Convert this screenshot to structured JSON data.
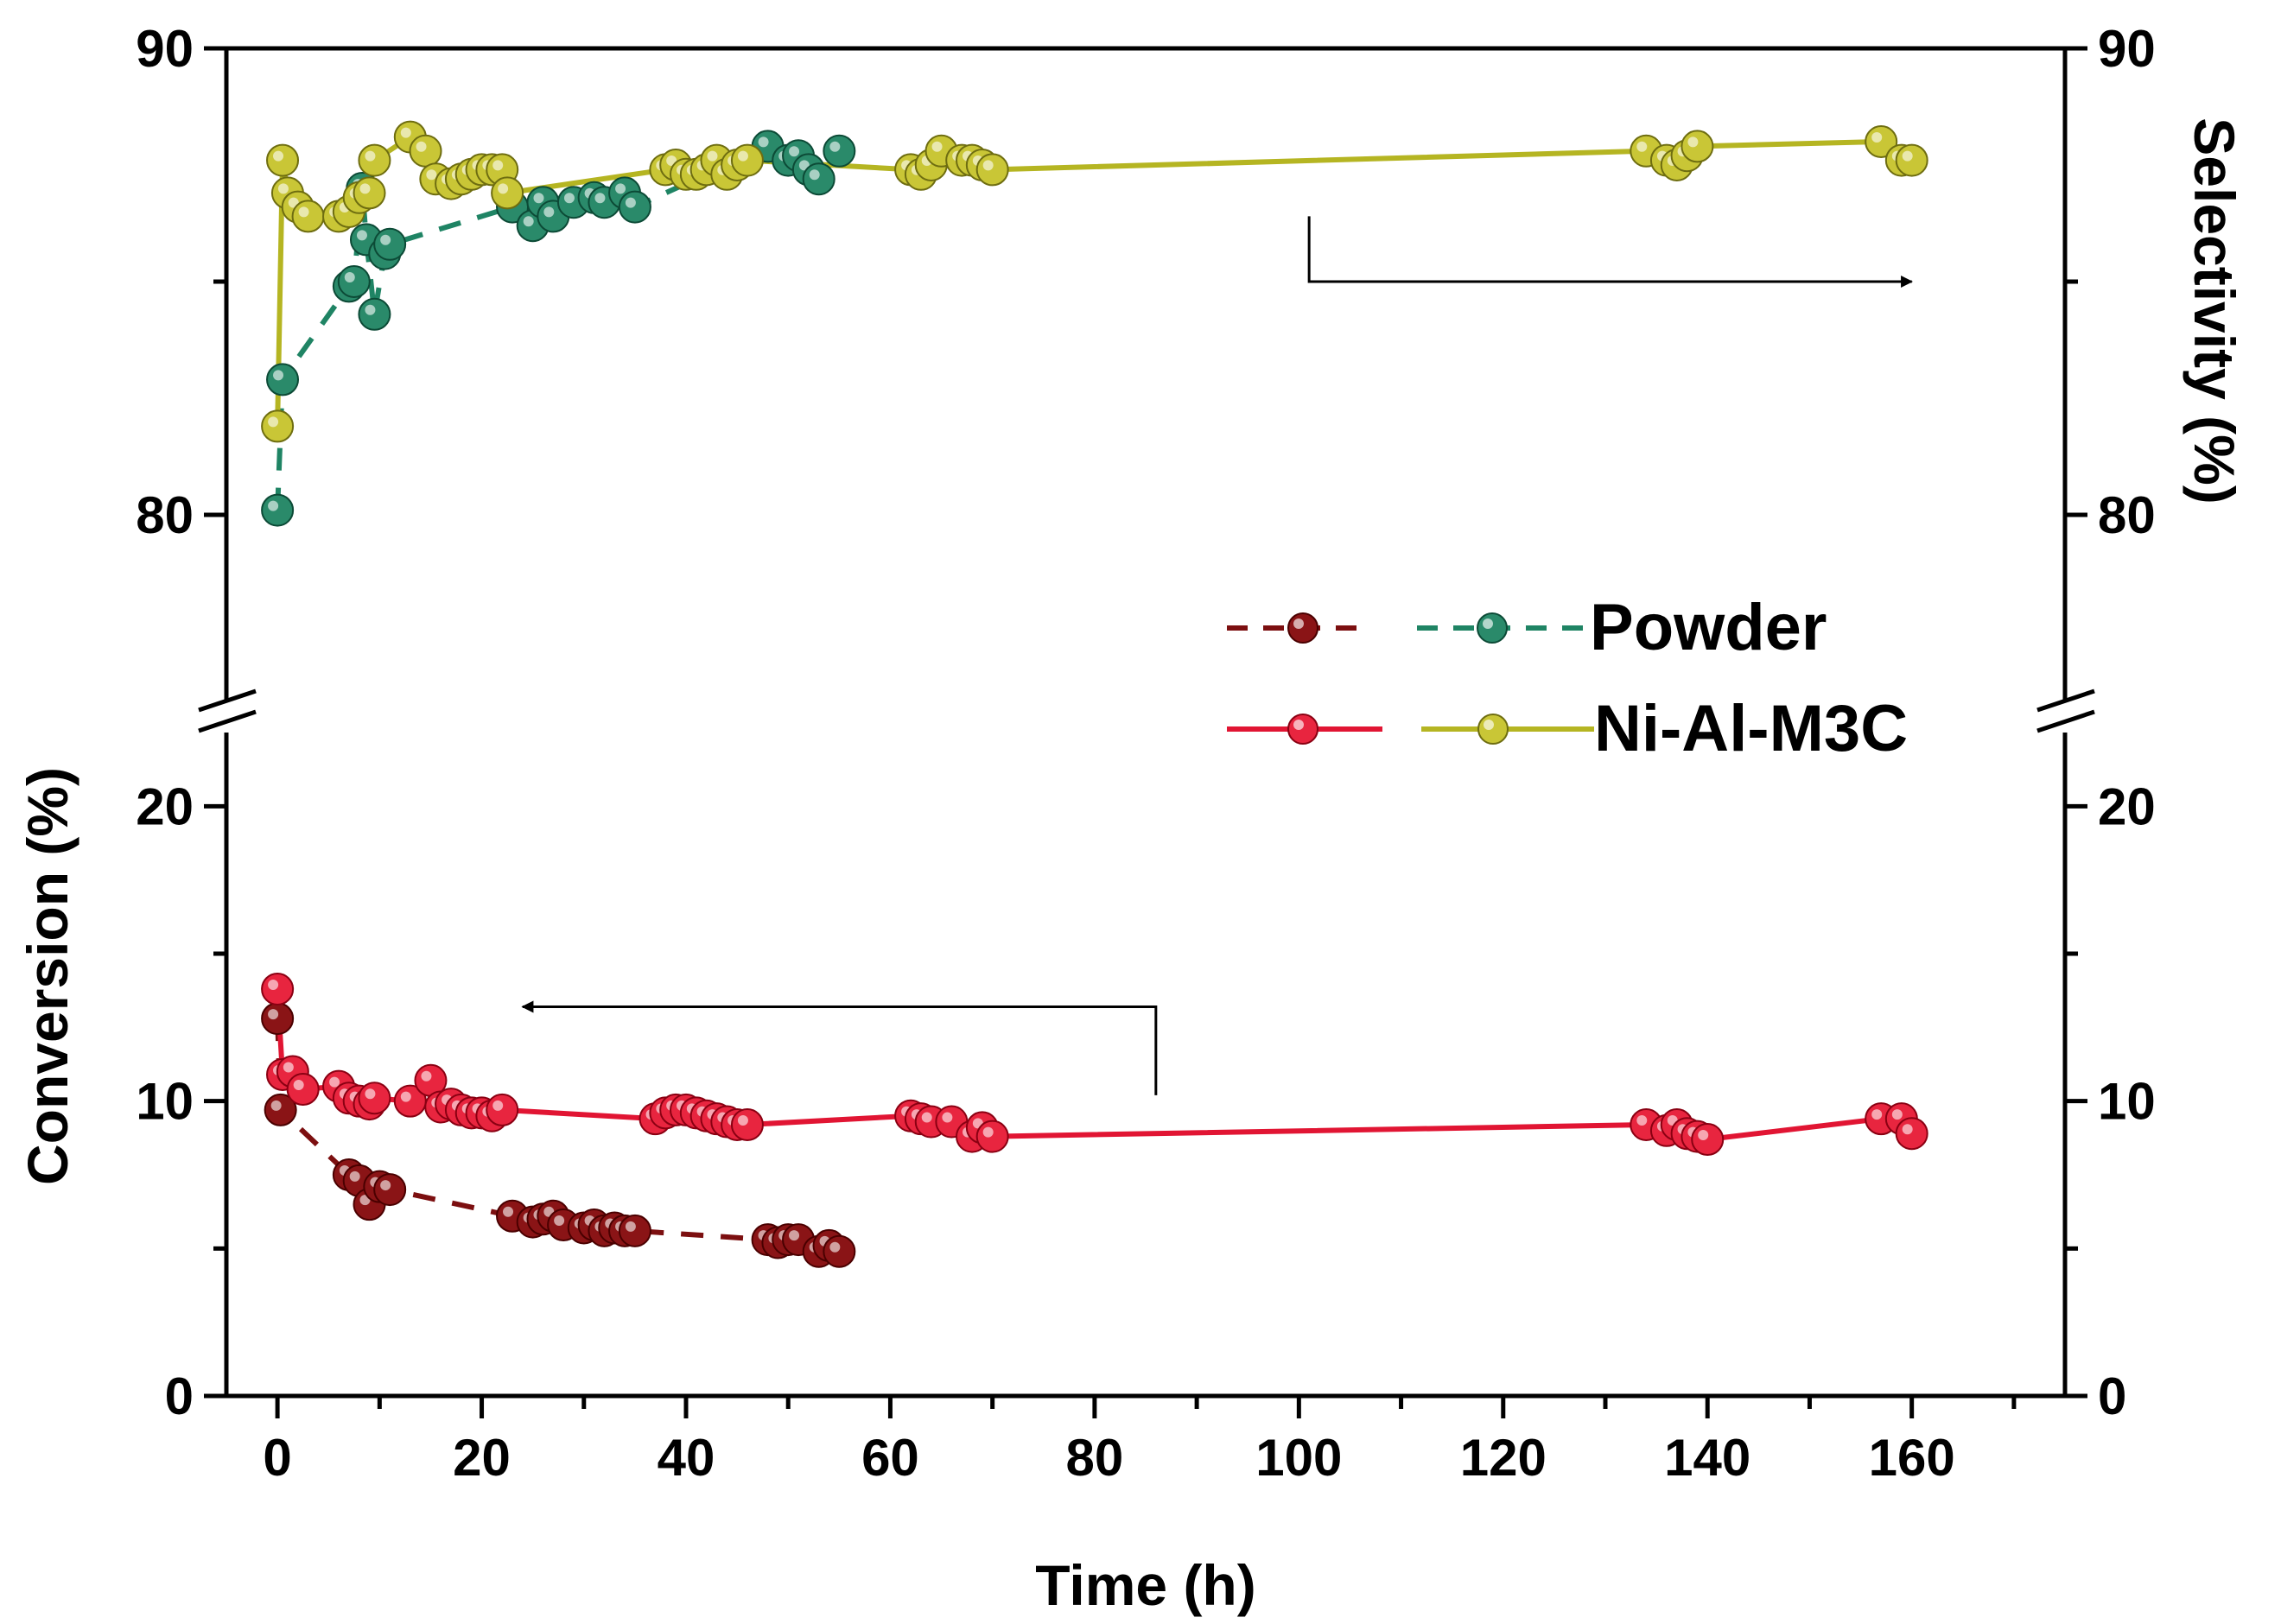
{
  "chart_data": {
    "type": "line",
    "xlabel": "Time (h)",
    "ylabel_left": "Conversion (%)",
    "ylabel_right": "Selectivity (%)",
    "xlim": [
      -5,
      175
    ],
    "x_ticks": [
      "0",
      "20",
      "40",
      "60",
      "80",
      "100",
      "120",
      "140",
      "160"
    ],
    "y_lower_range": [
      0,
      22.5
    ],
    "y_upper_range": [
      76,
      90
    ],
    "y_lower_ticks": [
      "0",
      "10",
      "20"
    ],
    "y_upper_ticks": [
      "80",
      "90"
    ],
    "legend": {
      "placement": "middle-right",
      "entries": [
        {
          "label": "Powder",
          "series": [
            "Powder conversion",
            "Powder selectivity"
          ],
          "style": "dashed"
        },
        {
          "label": "Ni-Al-M3C",
          "series": [
            "Ni-Al-M3C conversion",
            "Ni-Al-M3C selectivity"
          ],
          "style": "solid"
        }
      ]
    },
    "annotations": [
      {
        "type": "arrow",
        "meaning": "conversion series refer to left axis",
        "direction": "left",
        "from": {
          "x": 86,
          "y": 10.2
        },
        "corner": {
          "x": 86,
          "y": 13.2
        },
        "to": {
          "x": 24,
          "y": 13.2
        }
      },
      {
        "type": "arrow",
        "meaning": "selectivity series refer to right axis",
        "direction": "right",
        "from": {
          "x": 101,
          "y": 86.4
        },
        "corner": {
          "x": 101,
          "y": 85
        },
        "to": {
          "x": 160,
          "y": 85
        }
      }
    ],
    "series": [
      {
        "name": "Powder conversion",
        "axis": "left",
        "panel": "lower",
        "line_style": "dashed",
        "color": "#7c0f10",
        "marker_color": "#8a1416",
        "x": [
          0,
          0.3,
          7,
          8,
          9,
          10,
          11,
          23,
          25,
          26,
          27,
          28,
          30,
          31,
          32,
          33,
          34,
          35,
          48,
          49,
          50,
          51,
          53,
          54,
          55
        ],
        "y": [
          12.8,
          9.7,
          7.5,
          7.3,
          6.5,
          7.1,
          7.0,
          6.1,
          5.9,
          6.0,
          6.1,
          5.8,
          5.7,
          5.8,
          5.6,
          5.7,
          5.6,
          5.6,
          5.3,
          5.2,
          5.3,
          5.3,
          4.9,
          5.1,
          4.9
        ]
      },
      {
        "name": "Powder selectivity",
        "axis": "right",
        "panel": "upper",
        "line_style": "dashed",
        "color": "#1f8464",
        "marker_color": "#2a8a6a",
        "x": [
          0,
          0.5,
          7,
          7.5,
          8.3,
          8.7,
          9.5,
          10.5,
          11,
          23,
          25,
          26,
          27,
          29,
          31,
          32,
          34,
          35,
          48,
          50,
          51,
          52,
          53,
          55
        ],
        "y": [
          80.1,
          82.9,
          84.9,
          85.0,
          87.0,
          85.9,
          84.3,
          85.6,
          85.8,
          86.6,
          86.2,
          86.7,
          86.4,
          86.7,
          86.8,
          86.7,
          86.9,
          86.6,
          87.9,
          87.6,
          87.7,
          87.4,
          87.2,
          87.8
        ]
      },
      {
        "name": "Ni-Al-M3C conversion",
        "axis": "left",
        "panel": "lower",
        "line_style": "solid",
        "color": "#e11533",
        "marker_color": "#e8253f",
        "x": [
          0,
          0.5,
          1.5,
          2.5,
          6,
          7,
          8,
          9,
          9.5,
          13,
          15,
          16,
          17,
          18,
          19,
          20,
          21,
          22,
          37,
          38,
          39,
          40,
          41,
          42,
          43,
          44,
          45,
          46,
          62,
          63,
          64,
          66,
          68,
          69,
          70,
          134,
          136,
          137,
          138,
          139,
          140,
          157,
          159,
          160
        ],
        "y": [
          13.8,
          10.9,
          11.0,
          10.4,
          10.5,
          10.1,
          10.0,
          9.9,
          10.1,
          10.0,
          10.7,
          9.8,
          9.9,
          9.7,
          9.6,
          9.6,
          9.5,
          9.7,
          9.4,
          9.6,
          9.7,
          9.7,
          9.6,
          9.5,
          9.4,
          9.3,
          9.2,
          9.2,
          9.5,
          9.4,
          9.3,
          9.3,
          8.8,
          9.1,
          8.8,
          9.2,
          9.0,
          9.2,
          8.9,
          8.8,
          8.7,
          9.4,
          9.4,
          8.9
        ]
      },
      {
        "name": "Ni-Al-M3C selectivity",
        "axis": "right",
        "panel": "upper",
        "line_style": "solid",
        "color": "#b5b522",
        "marker_color": "#c9c636",
        "x": [
          0,
          0.5,
          1,
          2,
          3,
          6,
          7,
          8,
          9,
          9.5,
          13,
          14.5,
          15.5,
          17,
          18,
          19,
          20,
          21,
          22,
          22.5,
          38,
          39,
          40,
          41,
          42,
          43,
          44,
          45,
          46,
          62,
          63,
          64,
          65,
          67,
          68,
          69,
          70,
          134,
          136,
          137,
          138,
          139,
          157,
          159,
          160
        ],
        "y": [
          81.9,
          87.6,
          86.9,
          86.6,
          86.4,
          86.4,
          86.5,
          86.8,
          86.9,
          87.6,
          88.1,
          87.8,
          87.2,
          87.1,
          87.2,
          87.3,
          87.4,
          87.4,
          87.4,
          86.9,
          87.4,
          87.5,
          87.3,
          87.3,
          87.4,
          87.6,
          87.3,
          87.5,
          87.6,
          87.4,
          87.3,
          87.5,
          87.8,
          87.6,
          87.6,
          87.5,
          87.4,
          87.8,
          87.6,
          87.5,
          87.7,
          87.9,
          88.0,
          87.6,
          87.6
        ]
      }
    ]
  }
}
